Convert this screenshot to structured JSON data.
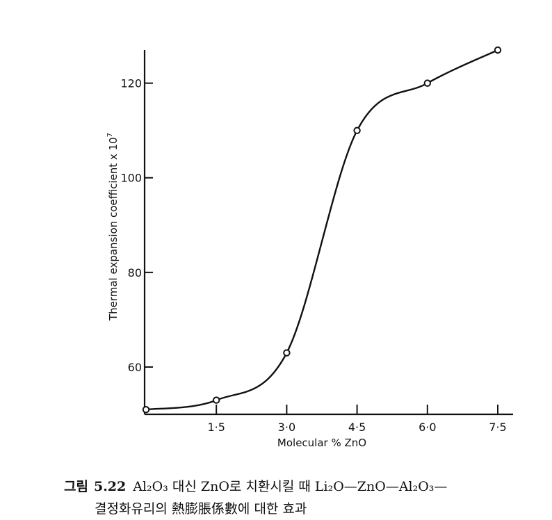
{
  "chart_data": {
    "type": "line",
    "title": "",
    "xlabel": "Molecular % ZnO",
    "ylabel": "Thermal expansion coefficient x 10",
    "ylabel_sup": "7",
    "xlim": [
      0,
      7.5
    ],
    "ylim": [
      50,
      127
    ],
    "x_ticks": [
      {
        "value": 1.5,
        "label": "1·5"
      },
      {
        "value": 3.0,
        "label": "3·0"
      },
      {
        "value": 4.5,
        "label": "4·5"
      },
      {
        "value": 6.0,
        "label": "6·0"
      },
      {
        "value": 7.5,
        "label": "7·5"
      }
    ],
    "y_ticks": [
      {
        "value": 60,
        "label": "60"
      },
      {
        "value": 80,
        "label": "80"
      },
      {
        "value": 100,
        "label": "100"
      },
      {
        "value": 120,
        "label": "120"
      }
    ],
    "series": [
      {
        "x": [
          0,
          1.5,
          3.0,
          4.5,
          6.0,
          7.5
        ],
        "y": [
          51,
          53,
          63,
          110,
          120,
          127
        ]
      }
    ],
    "grid": false,
    "legend": "none"
  },
  "caption": {
    "label": "그림",
    "number": "5.22",
    "line1_text": "Al₂O₃ 대신 ZnO로 치환시킬 때 Li₂O—ZnO—Al₂O₃—",
    "line2_text": "결정화유리의 熱膨脹係數에 대한 효과"
  }
}
